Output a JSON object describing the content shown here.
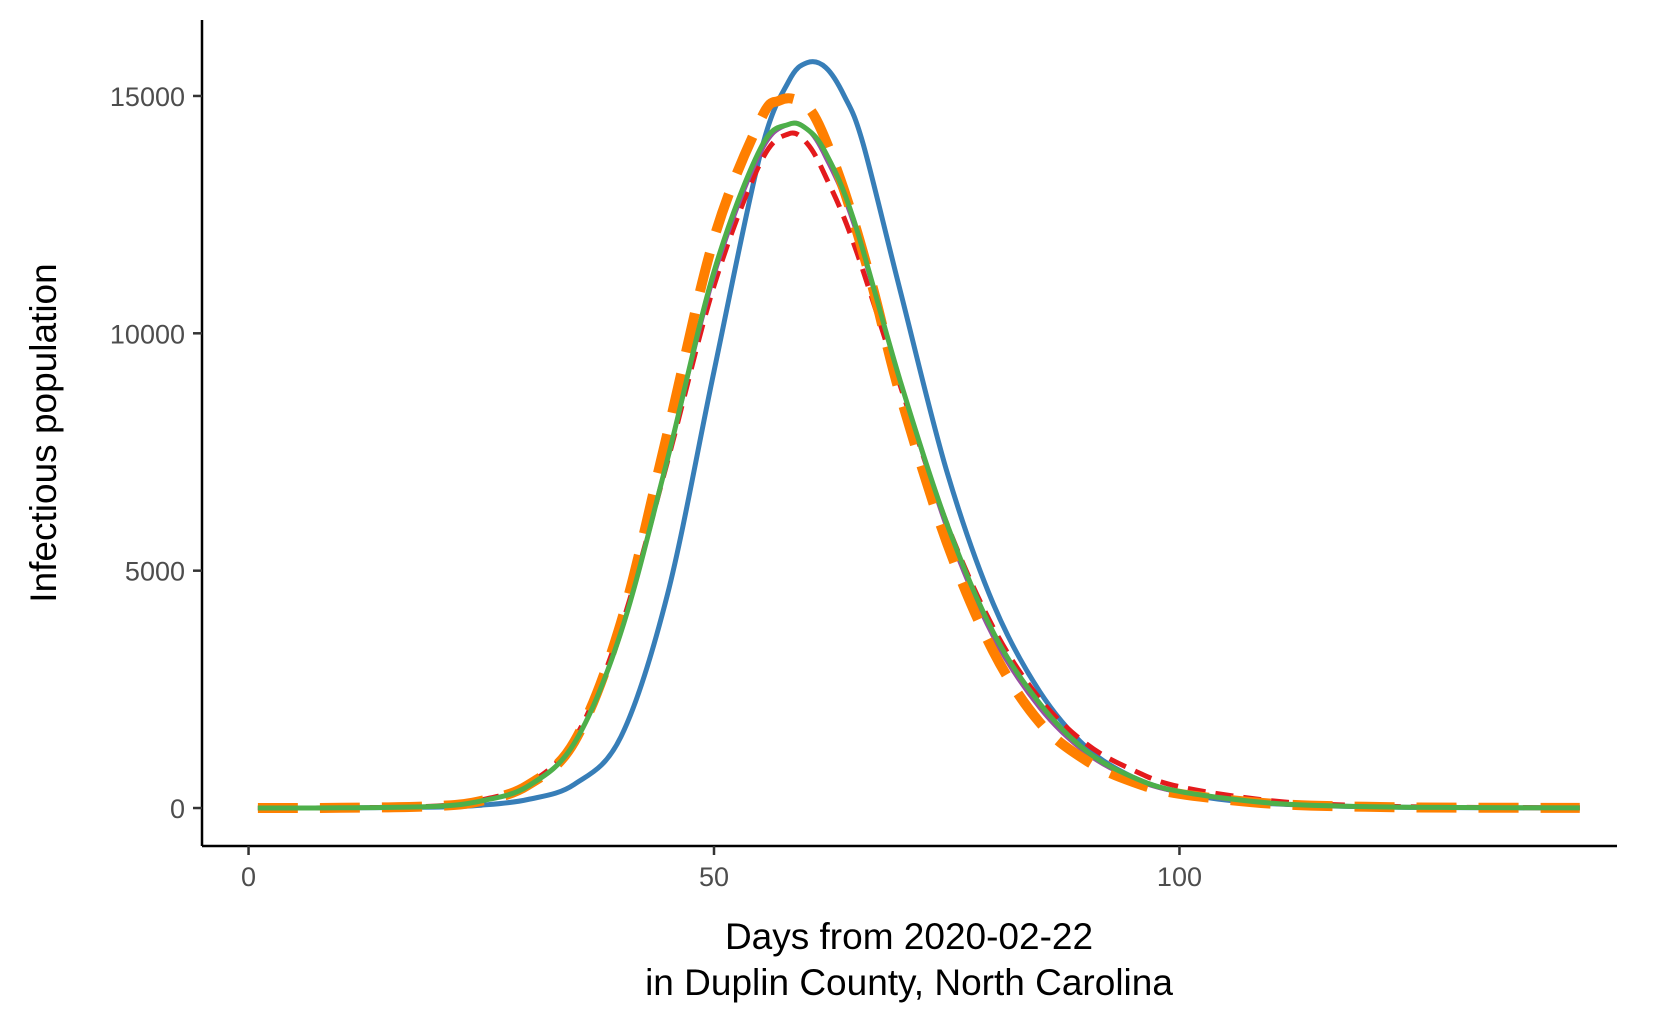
{
  "chart_data": {
    "type": "line",
    "title": "",
    "xlabel_line1": "Days from 2020-02-22",
    "xlabel_line2": "in Duplin County, North Carolina",
    "ylabel": "Infectious population",
    "xlim": [
      -5,
      147
    ],
    "ylim": [
      -800,
      16600
    ],
    "x_ticks": [
      0,
      50,
      100
    ],
    "y_ticks": [
      0,
      5000,
      10000,
      15000
    ],
    "grid": false,
    "legend": "none",
    "series": [
      {
        "color": "#377EB8",
        "dash": "solid",
        "width": 5,
        "x": [
          1,
          10,
          20,
          25,
          30,
          35,
          40,
          45,
          50,
          55,
          58,
          60,
          62,
          64,
          66,
          70,
          75,
          80,
          85,
          90,
          95,
          100,
          105,
          110,
          120,
          130,
          143
        ],
        "y": [
          0,
          3,
          20,
          60,
          180,
          500,
          1500,
          4500,
          9200,
          13800,
          15300,
          15700,
          15600,
          15000,
          14000,
          10900,
          7100,
          4300,
          2450,
          1280,
          650,
          330,
          170,
          90,
          25,
          8,
          2
        ]
      },
      {
        "color": "#E41A1C",
        "dash": "dashed",
        "width": 5,
        "x": [
          1,
          10,
          20,
          25,
          30,
          35,
          40,
          45,
          50,
          55,
          58,
          60,
          62,
          65,
          70,
          75,
          80,
          85,
          90,
          95,
          100,
          110,
          120,
          130,
          143
        ],
        "y": [
          0,
          5,
          40,
          170,
          500,
          1450,
          3800,
          7300,
          11000,
          13600,
          14200,
          14000,
          13300,
          11900,
          8900,
          6000,
          3800,
          2300,
          1350,
          800,
          450,
          150,
          50,
          15,
          5
        ]
      },
      {
        "color": "#984EA3",
        "dash": "solid",
        "width": 4,
        "x": [
          1,
          10,
          20,
          25,
          30,
          35,
          40,
          45,
          50,
          55,
          58,
          60,
          62,
          65,
          70,
          75,
          80,
          85,
          90,
          95,
          100,
          110,
          120,
          130,
          143
        ],
        "y": [
          0,
          4,
          35,
          150,
          460,
          1370,
          3700,
          7350,
          11200,
          13800,
          14400,
          14300,
          13700,
          12300,
          9000,
          5900,
          3600,
          2100,
          1150,
          620,
          330,
          90,
          25,
          8,
          2
        ]
      },
      {
        "color": "#FF7F00",
        "dash": "longdash",
        "width": 10,
        "x": [
          1,
          10,
          20,
          25,
          30,
          35,
          40,
          45,
          50,
          55,
          57,
          59,
          61,
          64,
          67,
          70,
          75,
          80,
          85,
          90,
          95,
          100,
          110,
          120,
          130,
          143
        ],
        "y": [
          0,
          5,
          40,
          150,
          480,
          1400,
          3900,
          7900,
          12000,
          14500,
          14900,
          14900,
          14500,
          13000,
          11000,
          8700,
          5600,
          3300,
          1800,
          1000,
          550,
          300,
          90,
          25,
          8,
          2
        ]
      },
      {
        "color": "#4DAF4A",
        "dash": "solid",
        "width": 5,
        "x": [
          1,
          10,
          20,
          25,
          30,
          35,
          40,
          45,
          50,
          55,
          58,
          60,
          62,
          65,
          70,
          75,
          80,
          85,
          90,
          95,
          100,
          110,
          120,
          130,
          143
        ],
        "y": [
          0,
          4,
          35,
          150,
          460,
          1370,
          3700,
          7350,
          11300,
          13900,
          14400,
          14300,
          13800,
          12400,
          9000,
          6000,
          3700,
          2200,
          1200,
          650,
          350,
          100,
          30,
          10,
          3
        ]
      }
    ]
  }
}
